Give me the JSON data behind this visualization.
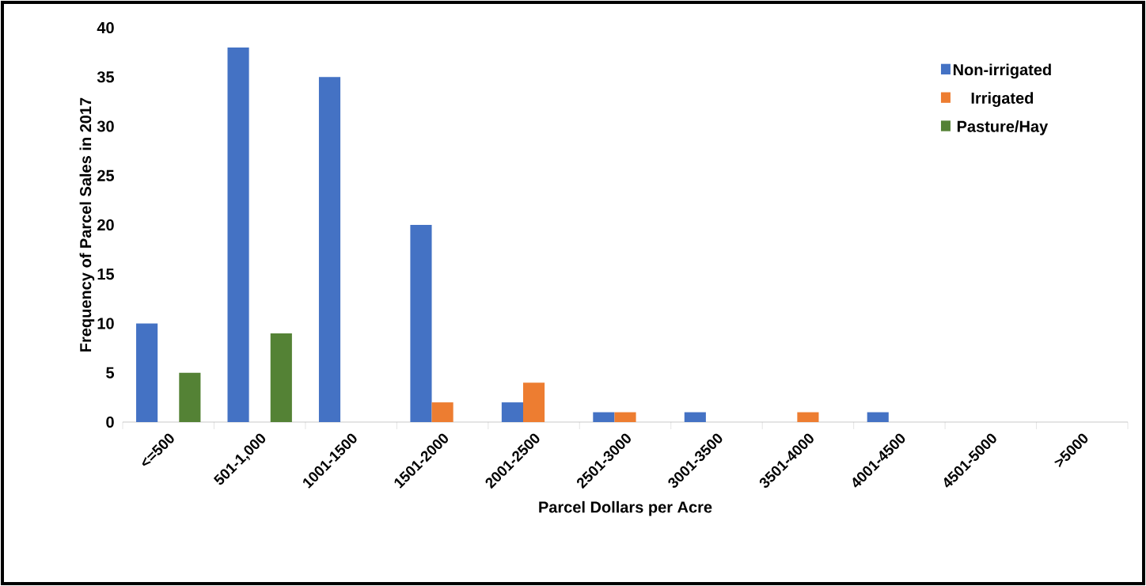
{
  "chart_data": {
    "type": "bar",
    "xlabel": "Parcel Dollars per Acre",
    "ylabel": "Frequency of Parcel Sales in 2017",
    "categories": [
      "<=500",
      "501-1,000",
      "1001-1500",
      "1501-2000",
      "2001-2500",
      "2501-3000",
      "3001-3500",
      "3501-4000",
      "4001-4500",
      "4501-5000",
      ">5000"
    ],
    "series": [
      {
        "name": "Non-irrigated",
        "color": "#4472c4",
        "values": [
          10,
          38,
          35,
          20,
          2,
          1,
          1,
          0,
          1,
          0,
          0
        ]
      },
      {
        "name": "Irrigated",
        "color": "#ed7d31",
        "values": [
          0,
          0,
          0,
          2,
          4,
          1,
          0,
          1,
          0,
          0,
          0
        ]
      },
      {
        "name": "Pasture/Hay",
        "color": "#548235",
        "values": [
          5,
          9,
          0,
          0,
          0,
          0,
          0,
          0,
          0,
          0,
          0
        ]
      }
    ],
    "ylim": [
      0,
      40
    ],
    "yticks": [
      0,
      5,
      10,
      15,
      20,
      25,
      30,
      35,
      40
    ],
    "grid": false,
    "legend": "top right"
  }
}
